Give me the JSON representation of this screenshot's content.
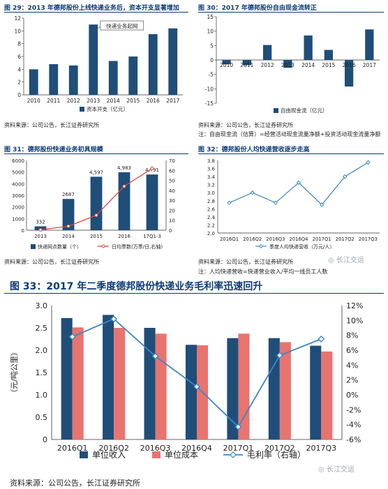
{
  "titles": {
    "c29": "图 29：2013 年德邦股份上线快递业务后，资本开支显著增加",
    "c30": "图 30：2017 年德邦股份自由现金流转正",
    "c31": "图 31：德邦股份快递业务初具规模",
    "c32": "图 32：德邦股份人均快递营收逐步走高",
    "c33": "图 33：2017 年二季度德邦股份快递业务毛利率迅速回升"
  },
  "notes": {
    "src29": "资料来源：公司公告，长江证券研究所",
    "src30": "资料来源：公司公告，长江证券研究所",
    "note30": "注：自由现金流（估算）=经营活动现金流量净额+投资活动现金流量净额",
    "src31": "资料来源：公司公告，长江证券研究所",
    "src32": "资料来源：公司公告，长江证券研究所",
    "note32": "注：人均快递营收=快递营业收入/平均一线员工人数",
    "src33": "资料来源：公司公告，长江证券研究所"
  },
  "watermark": "长江交运",
  "colors": {
    "navy": "#1f4e79",
    "salmon": "#e8746f",
    "red": "#d94f3d",
    "line": "#3d86c6"
  },
  "chart_data": [
    {
      "id": "c29",
      "type": "bar",
      "categories": [
        "2010",
        "2011",
        "2012",
        "2013",
        "2014",
        "2015",
        "2016",
        "2017"
      ],
      "series": [
        {
          "name": "资本开支（亿元）",
          "values": [
            4.0,
            4.8,
            4.6,
            11.0,
            5.3,
            6.0,
            9.5,
            10.4
          ]
        }
      ],
      "ylim": [
        0,
        12
      ],
      "yticks": [
        0,
        2,
        4,
        6,
        8,
        10,
        12
      ],
      "annotation": "快递业务起网",
      "legend": "bottom",
      "grid": false
    },
    {
      "id": "c30",
      "type": "bar",
      "categories": [
        "2010",
        "2011",
        "2012",
        "2013",
        "2014",
        "2015",
        "2016",
        "2017"
      ],
      "series": [
        {
          "name": "自由现金流（亿元）",
          "values": [
            -1.5,
            -1.8,
            5.2,
            -2.7,
            8.5,
            3.5,
            -9.2,
            10.6
          ]
        }
      ],
      "ylim": [
        -15,
        15
      ],
      "yticks": [
        -15,
        -10,
        -5,
        0,
        5,
        10,
        15
      ],
      "legend": "bottom",
      "grid": false
    },
    {
      "id": "c31",
      "type": "bar+line",
      "categories": [
        "2013",
        "2014",
        "2015",
        "2016",
        "17Q1-3"
      ],
      "series": [
        {
          "name": "快递网点数量（个）",
          "type": "bar",
          "values": [
            332,
            2687,
            4597,
            4983,
            4791
          ],
          "axis": "left"
        },
        {
          "name": "日均票数(万票/日,右轴)",
          "type": "line",
          "values": [
            0.4,
            4,
            15,
            44,
            62
          ],
          "axis": "right"
        }
      ],
      "ylim": [
        0,
        6000
      ],
      "yticks": [
        0,
        1000,
        2000,
        3000,
        4000,
        5000,
        6000
      ],
      "y2lim": [
        0,
        70
      ],
      "y2ticks": [
        0,
        10,
        20,
        30,
        40,
        50,
        60,
        70
      ],
      "data_labels": [
        "332",
        "2687",
        "4,597",
        "4,983",
        "4,791"
      ],
      "legend": "bottom",
      "grid": false
    },
    {
      "id": "c32",
      "type": "line",
      "categories": [
        "2016Q1",
        "2016Q2",
        "2016Q3",
        "2016Q4",
        "2017Q1",
        "2017Q2",
        "2017Q3"
      ],
      "series": [
        {
          "name": "季度人均快递营收（万元/人）",
          "values": [
            2.75,
            3.0,
            2.75,
            3.25,
            2.7,
            3.4,
            3.75
          ]
        }
      ],
      "ylim": [
        2.0,
        3.8
      ],
      "yticks": [
        "2.0",
        "2.2",
        "2.4",
        "2.6",
        "2.8",
        "3.0",
        "3.2",
        "3.4",
        "3.6",
        "3.8"
      ],
      "legend": "bottom",
      "grid": false
    },
    {
      "id": "c33",
      "type": "bar+line",
      "categories": [
        "2016Q1",
        "2016Q2",
        "2016Q3",
        "2016Q4",
        "2017Q1",
        "2017Q2",
        "2017Q3"
      ],
      "series": [
        {
          "name": "单位收入",
          "type": "bar",
          "values": [
            2.72,
            2.79,
            2.5,
            2.12,
            2.27,
            2.27,
            2.1
          ],
          "axis": "left"
        },
        {
          "name": "单位成本",
          "type": "bar",
          "values": [
            2.51,
            2.5,
            2.37,
            2.11,
            2.37,
            2.18,
            1.97
          ],
          "axis": "left"
        },
        {
          "name": "毛利率（右轴）",
          "type": "line",
          "values": [
            7.8,
            10.2,
            5.2,
            1.1,
            -4.3,
            5.3,
            7.5
          ],
          "axis": "right"
        }
      ],
      "ylabel": "（元/吨公里）",
      "ylim": [
        0,
        3.0
      ],
      "yticks": [
        "0",
        "0.5",
        "1.0",
        "1.5",
        "2.0",
        "2.5",
        "3.0"
      ],
      "y2lim": [
        -6,
        12
      ],
      "y2ticks": [
        "-6%",
        "-4%",
        "-2%",
        "0%",
        "2%",
        "4%",
        "6%",
        "8%",
        "10%",
        "12%"
      ],
      "legend": "bottom",
      "grid": false
    }
  ]
}
